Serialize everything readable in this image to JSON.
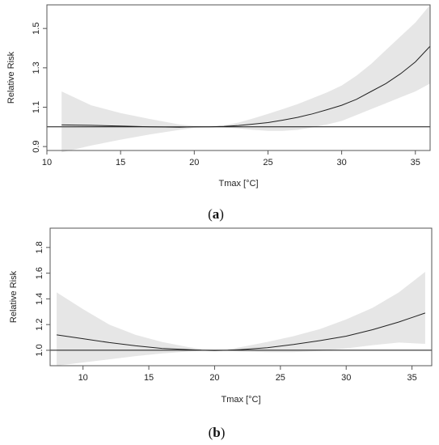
{
  "chart_data": [
    {
      "type": "line",
      "panel_label": "(a)",
      "panel_letter": "a",
      "xlabel": "Tmax [°C]",
      "ylabel": "Relative Risk",
      "xlim": [
        10,
        36
      ],
      "ylim": [
        0.88,
        1.62
      ],
      "xticks": [
        10,
        15,
        20,
        25,
        30,
        35
      ],
      "yticks": [
        0.9,
        1.1,
        1.3,
        1.5
      ],
      "ytick_labels": [
        "0.9",
        "1.1",
        "1.3",
        "1.5"
      ],
      "reference_line": 1.0,
      "band_color": "#e6e6e6",
      "line_color": "#222222",
      "series": [
        {
          "x": [
            11,
            13,
            15,
            17,
            19,
            20,
            21,
            22,
            23,
            24,
            25,
            26,
            27,
            28,
            29,
            30,
            31,
            32,
            33,
            34,
            35,
            36
          ],
          "y": [
            1.01,
            1.008,
            1.004,
            1.0,
            0.998,
            1.0,
            1.0,
            1.002,
            1.007,
            1.014,
            1.022,
            1.034,
            1.048,
            1.066,
            1.087,
            1.11,
            1.14,
            1.18,
            1.22,
            1.27,
            1.33,
            1.41
          ],
          "lower": [
            0.87,
            0.905,
            0.935,
            0.962,
            0.985,
            0.995,
            0.998,
            0.997,
            0.992,
            0.985,
            0.98,
            0.98,
            0.985,
            0.997,
            1.012,
            1.03,
            1.06,
            1.09,
            1.12,
            1.15,
            1.18,
            1.22
          ],
          "upper": [
            1.18,
            1.11,
            1.07,
            1.04,
            1.012,
            1.005,
            1.003,
            1.008,
            1.022,
            1.043,
            1.066,
            1.09,
            1.115,
            1.145,
            1.175,
            1.21,
            1.26,
            1.32,
            1.39,
            1.46,
            1.53,
            1.62
          ]
        }
      ]
    },
    {
      "type": "line",
      "panel_label": "(b)",
      "panel_letter": "b",
      "xlabel": "Tmax [°C]",
      "ylabel": "Relative Risk",
      "xlim": [
        7.5,
        36.5
      ],
      "ylim": [
        0.88,
        1.95
      ],
      "xticks": [
        10,
        15,
        20,
        25,
        30,
        35
      ],
      "yticks": [
        1.0,
        1.2,
        1.4,
        1.6,
        1.8
      ],
      "ytick_labels": [
        "1.0",
        "1.2",
        "1.4",
        "1.6",
        "1.8"
      ],
      "reference_line": 1.0,
      "band_color": "#e6e6e6",
      "line_color": "#222222",
      "series": [
        {
          "x": [
            8,
            10,
            12,
            14,
            16,
            18,
            19,
            20,
            21,
            22,
            24,
            26,
            28,
            30,
            32,
            34,
            36
          ],
          "y": [
            1.12,
            1.09,
            1.06,
            1.035,
            1.015,
            1.005,
            1.0,
            0.998,
            1.0,
            1.005,
            1.02,
            1.045,
            1.075,
            1.11,
            1.16,
            1.22,
            1.29
          ],
          "lower": [
            0.88,
            0.905,
            0.93,
            0.955,
            0.975,
            0.99,
            0.995,
            0.995,
            0.995,
            0.99,
            0.985,
            0.985,
            0.995,
            1.015,
            1.04,
            1.06,
            1.05
          ],
          "upper": [
            1.45,
            1.32,
            1.2,
            1.12,
            1.065,
            1.025,
            1.01,
            1.003,
            1.008,
            1.025,
            1.065,
            1.11,
            1.165,
            1.24,
            1.33,
            1.45,
            1.61
          ]
        }
      ]
    }
  ]
}
